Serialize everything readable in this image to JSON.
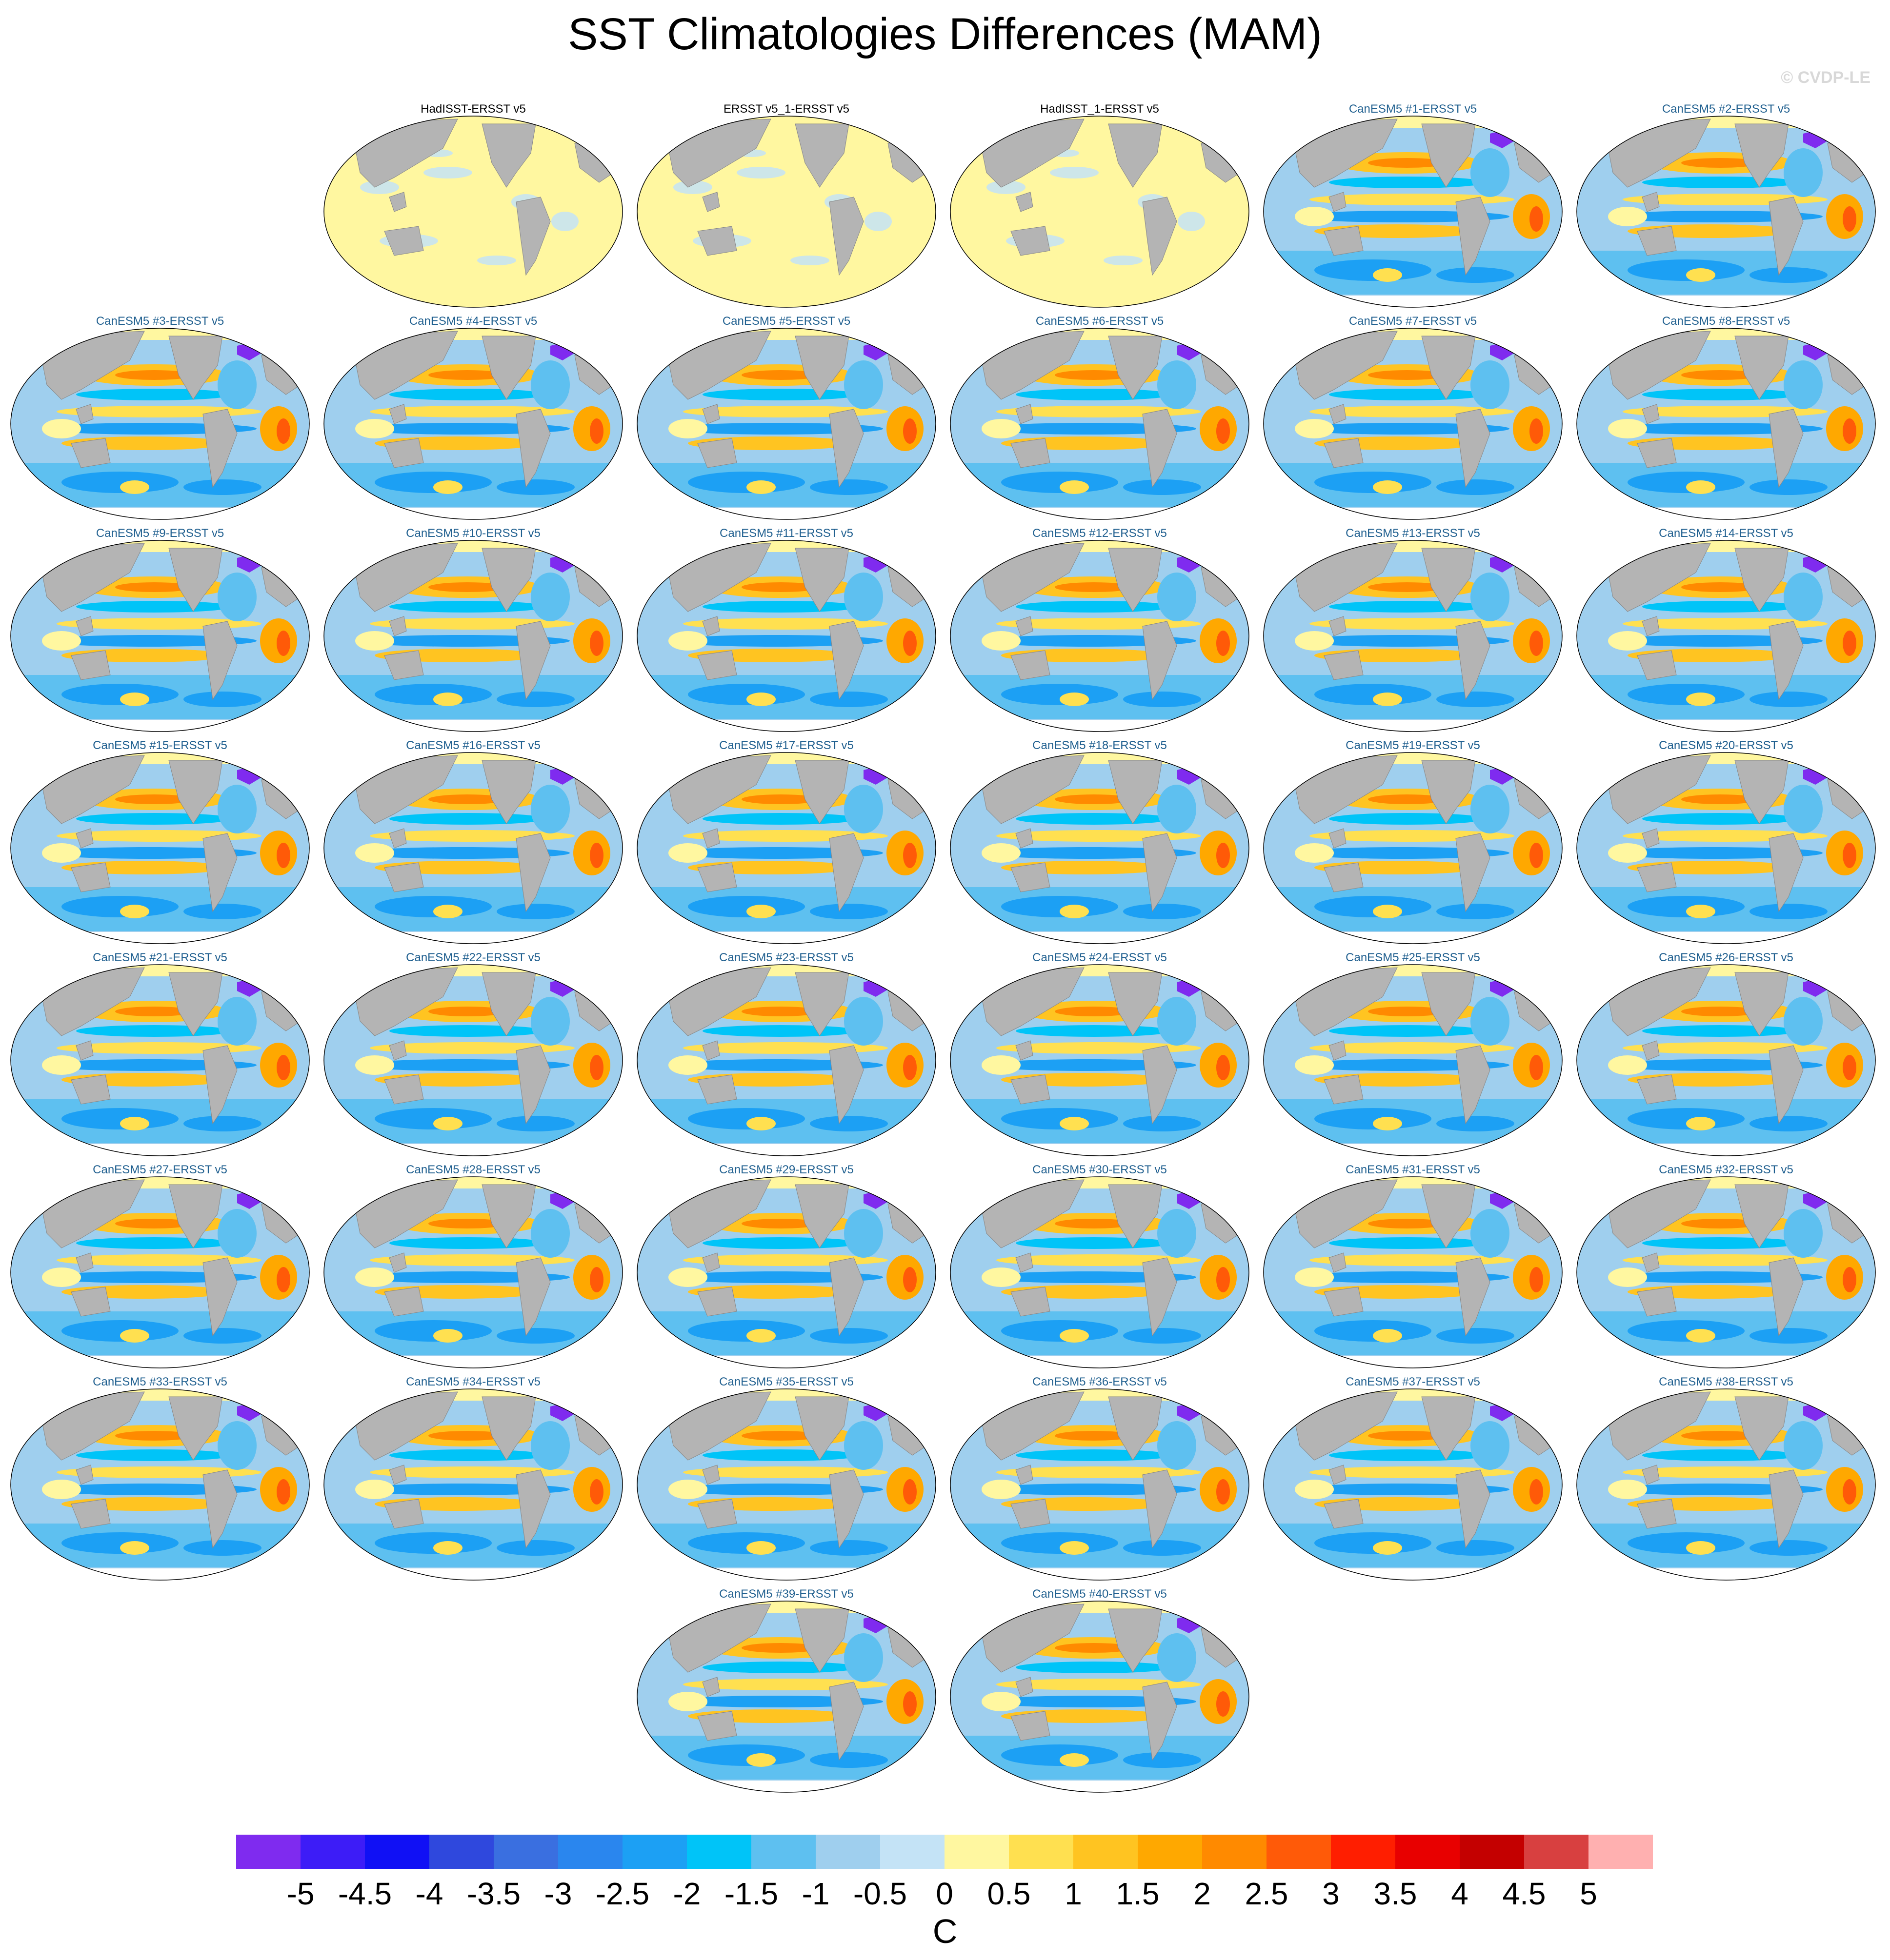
{
  "title": "SST Climatologies Differences (MAM)",
  "watermark": "© CVDP-LE",
  "panels": [
    {
      "label": "HadISST-ERSST v5",
      "kind": "obs-diff"
    },
    {
      "label": "ERSST v5_1-ERSST v5",
      "kind": "obs-diff"
    },
    {
      "label": "HadISST_1-ERSST v5",
      "kind": "obs-diff"
    },
    {
      "label": "CanESM5 #1-ERSST v5",
      "kind": "model-diff"
    },
    {
      "label": "CanESM5 #2-ERSST v5",
      "kind": "model-diff"
    },
    {
      "label": "CanESM5 #3-ERSST v5",
      "kind": "model-diff"
    },
    {
      "label": "CanESM5 #4-ERSST v5",
      "kind": "model-diff"
    },
    {
      "label": "CanESM5 #5-ERSST v5",
      "kind": "model-diff"
    },
    {
      "label": "CanESM5 #6-ERSST v5",
      "kind": "model-diff"
    },
    {
      "label": "CanESM5 #7-ERSST v5",
      "kind": "model-diff"
    },
    {
      "label": "CanESM5 #8-ERSST v5",
      "kind": "model-diff"
    },
    {
      "label": "CanESM5 #9-ERSST v5",
      "kind": "model-diff"
    },
    {
      "label": "CanESM5 #10-ERSST v5",
      "kind": "model-diff"
    },
    {
      "label": "CanESM5 #11-ERSST v5",
      "kind": "model-diff"
    },
    {
      "label": "CanESM5 #12-ERSST v5",
      "kind": "model-diff"
    },
    {
      "label": "CanESM5 #13-ERSST v5",
      "kind": "model-diff"
    },
    {
      "label": "CanESM5 #14-ERSST v5",
      "kind": "model-diff"
    },
    {
      "label": "CanESM5 #15-ERSST v5",
      "kind": "model-diff"
    },
    {
      "label": "CanESM5 #16-ERSST v5",
      "kind": "model-diff"
    },
    {
      "label": "CanESM5 #17-ERSST v5",
      "kind": "model-diff"
    },
    {
      "label": "CanESM5 #18-ERSST v5",
      "kind": "model-diff"
    },
    {
      "label": "CanESM5 #19-ERSST v5",
      "kind": "model-diff"
    },
    {
      "label": "CanESM5 #20-ERSST v5",
      "kind": "model-diff"
    },
    {
      "label": "CanESM5 #21-ERSST v5",
      "kind": "model-diff"
    },
    {
      "label": "CanESM5 #22-ERSST v5",
      "kind": "model-diff"
    },
    {
      "label": "CanESM5 #23-ERSST v5",
      "kind": "model-diff"
    },
    {
      "label": "CanESM5 #24-ERSST v5",
      "kind": "model-diff"
    },
    {
      "label": "CanESM5 #25-ERSST v5",
      "kind": "model-diff"
    },
    {
      "label": "CanESM5 #26-ERSST v5",
      "kind": "model-diff"
    },
    {
      "label": "CanESM5 #27-ERSST v5",
      "kind": "model-diff"
    },
    {
      "label": "CanESM5 #28-ERSST v5",
      "kind": "model-diff"
    },
    {
      "label": "CanESM5 #29-ERSST v5",
      "kind": "model-diff"
    },
    {
      "label": "CanESM5 #30-ERSST v5",
      "kind": "model-diff"
    },
    {
      "label": "CanESM5 #31-ERSST v5",
      "kind": "model-diff"
    },
    {
      "label": "CanESM5 #32-ERSST v5",
      "kind": "model-diff"
    },
    {
      "label": "CanESM5 #33-ERSST v5",
      "kind": "model-diff"
    },
    {
      "label": "CanESM5 #34-ERSST v5",
      "kind": "model-diff"
    },
    {
      "label": "CanESM5 #35-ERSST v5",
      "kind": "model-diff"
    },
    {
      "label": "CanESM5 #36-ERSST v5",
      "kind": "model-diff"
    },
    {
      "label": "CanESM5 #37-ERSST v5",
      "kind": "model-diff"
    },
    {
      "label": "CanESM5 #38-ERSST v5",
      "kind": "model-diff"
    },
    {
      "label": "CanESM5 #39-ERSST v5",
      "kind": "model-diff"
    },
    {
      "label": "CanESM5 #40-ERSST v5",
      "kind": "model-diff"
    }
  ],
  "colorbar": {
    "labels": [
      "-5",
      "-4.5",
      "-4",
      "-3.5",
      "-3",
      "-2.5",
      "-2",
      "-1.5",
      "-1",
      "-0.5",
      "0",
      "0.5",
      "1",
      "1.5",
      "2",
      "2.5",
      "3",
      "3.5",
      "4",
      "4.5",
      "5"
    ],
    "colors": [
      "#7f2bef",
      "#3d1cf7",
      "#1010f5",
      "#2f48dd",
      "#3a6fe0",
      "#2a86ee",
      "#1ca0f4",
      "#00c4f8",
      "#5ec0f0",
      "#9fcfee",
      "#c4e3f6",
      "#fff7a0",
      "#ffe050",
      "#ffc421",
      "#ffa800",
      "#ff8a00",
      "#ff5a08",
      "#ff1e00",
      "#e80000",
      "#c40000",
      "#d84040",
      "#ffb0b0"
    ],
    "units": "C"
  },
  "colors": {
    "land": "#b4b4b4",
    "ocean_obs": "#fff7a0",
    "panel_title_obs": "#000000",
    "panel_title_model": "#1f5f8f"
  }
}
